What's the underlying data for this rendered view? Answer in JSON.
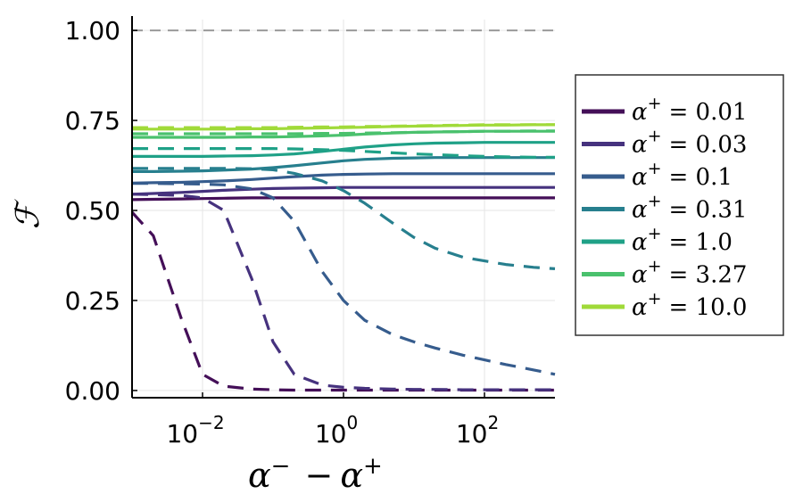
{
  "chart_data": {
    "type": "line",
    "x_scale": "log",
    "xlim": [
      0.001,
      1000
    ],
    "ylim": [
      -0.02,
      1.03
    ],
    "xticks": [
      {
        "value": 0.01,
        "base": "10",
        "exp": "−2"
      },
      {
        "value": 1,
        "base": "10",
        "exp": "0"
      },
      {
        "value": 100,
        "base": "10",
        "exp": "2"
      }
    ],
    "yticks": [
      {
        "value": 0.0,
        "label": "0.00"
      },
      {
        "value": 0.25,
        "label": "0.25"
      },
      {
        "value": 0.5,
        "label": "0.50"
      },
      {
        "value": 0.75,
        "label": "0.75"
      },
      {
        "value": 1.0,
        "label": "1.00"
      }
    ],
    "ylabel": "ℱ",
    "xlabel": {
      "a": "α",
      "sup1": "−",
      "minus": "−",
      "b": "α",
      "sup2": "+"
    },
    "grid": true,
    "legend_position": "right",
    "reference_line": {
      "y": 1.0,
      "style": "dashed",
      "color": "#999999"
    },
    "x": [
      0.001,
      0.002,
      0.005,
      0.01,
      0.02,
      0.05,
      0.1,
      0.2,
      0.5,
      1,
      2,
      5,
      10,
      20,
      50,
      100,
      200,
      500,
      1000
    ],
    "series": [
      {
        "name": "0.01",
        "color": "#440f58",
        "solid": [
          0.53,
          0.531,
          0.532,
          0.533,
          0.534,
          0.535,
          0.535,
          0.535,
          0.535,
          0.535,
          0.535,
          0.535,
          0.535,
          0.535,
          0.535,
          0.535,
          0.535,
          0.535,
          0.535
        ],
        "dashed": [
          0.495,
          0.43,
          0.2,
          0.045,
          0.012,
          0.004,
          0.002,
          0.001,
          0.001,
          0.001,
          0.001,
          0.001,
          0.001,
          0.001,
          0.001,
          0.001,
          0.001,
          0.001,
          0.001
        ]
      },
      {
        "name": "0.03",
        "color": "#46327e",
        "solid": [
          0.545,
          0.547,
          0.55,
          0.553,
          0.556,
          0.559,
          0.561,
          0.562,
          0.563,
          0.564,
          0.564,
          0.564,
          0.564,
          0.564,
          0.564,
          0.564,
          0.564,
          0.564,
          0.564
        ],
        "dashed": [
          0.545,
          0.544,
          0.542,
          0.535,
          0.5,
          0.31,
          0.135,
          0.045,
          0.015,
          0.009,
          0.006,
          0.004,
          0.003,
          0.003,
          0.002,
          0.002,
          0.002,
          0.002,
          0.002
        ]
      },
      {
        "name": "0.1",
        "color": "#365c8d",
        "solid": [
          0.576,
          0.577,
          0.578,
          0.58,
          0.582,
          0.586,
          0.59,
          0.594,
          0.598,
          0.6,
          0.601,
          0.602,
          0.602,
          0.602,
          0.602,
          0.602,
          0.602,
          0.602,
          0.602
        ],
        "dashed": [
          0.575,
          0.575,
          0.574,
          0.573,
          0.571,
          0.56,
          0.535,
          0.47,
          0.33,
          0.25,
          0.195,
          0.155,
          0.135,
          0.118,
          0.098,
          0.085,
          0.072,
          0.057,
          0.045
        ]
      },
      {
        "name": "0.31",
        "color": "#277f8e",
        "solid": [
          0.608,
          0.608,
          0.609,
          0.61,
          0.612,
          0.615,
          0.619,
          0.624,
          0.632,
          0.638,
          0.642,
          0.645,
          0.646,
          0.647,
          0.647,
          0.647,
          0.647,
          0.647,
          0.647
        ],
        "dashed": [
          0.617,
          0.617,
          0.617,
          0.617,
          0.617,
          0.616,
          0.613,
          0.603,
          0.582,
          0.555,
          0.52,
          0.465,
          0.425,
          0.395,
          0.37,
          0.36,
          0.35,
          0.342,
          0.338
        ]
      },
      {
        "name": "1.0",
        "color": "#1fa187",
        "solid": [
          0.65,
          0.65,
          0.65,
          0.65,
          0.651,
          0.652,
          0.654,
          0.657,
          0.664,
          0.67,
          0.676,
          0.682,
          0.685,
          0.687,
          0.688,
          0.689,
          0.689,
          0.689,
          0.689
        ],
        "dashed": [
          0.672,
          0.672,
          0.672,
          0.672,
          0.672,
          0.672,
          0.672,
          0.671,
          0.669,
          0.667,
          0.664,
          0.66,
          0.657,
          0.655,
          0.652,
          0.65,
          0.649,
          0.648,
          0.648
        ]
      },
      {
        "name": "3.27",
        "color": "#4ac16d",
        "solid": [
          0.703,
          0.703,
          0.703,
          0.703,
          0.703,
          0.704,
          0.704,
          0.705,
          0.707,
          0.709,
          0.712,
          0.715,
          0.717,
          0.718,
          0.719,
          0.72,
          0.72,
          0.72,
          0.72
        ],
        "dashed": [
          0.713,
          0.713,
          0.713,
          0.713,
          0.713,
          0.713,
          0.713,
          0.713,
          0.714,
          0.714,
          0.715,
          0.716,
          0.717,
          0.718,
          0.719,
          0.72,
          0.72,
          0.721,
          0.721
        ]
      },
      {
        "name": "10.0",
        "color": "#a0da39",
        "solid": [
          0.726,
          0.726,
          0.726,
          0.726,
          0.726,
          0.727,
          0.727,
          0.728,
          0.729,
          0.73,
          0.731,
          0.733,
          0.734,
          0.735,
          0.736,
          0.737,
          0.737,
          0.738,
          0.738
        ],
        "dashed": [
          0.73,
          0.73,
          0.73,
          0.73,
          0.73,
          0.73,
          0.73,
          0.731,
          0.732,
          0.732,
          0.733,
          0.734,
          0.735,
          0.736,
          0.737,
          0.738,
          0.738,
          0.738,
          0.738
        ]
      }
    ],
    "legend": {
      "symbol": "α",
      "sup": "+",
      "eq": "="
    }
  }
}
